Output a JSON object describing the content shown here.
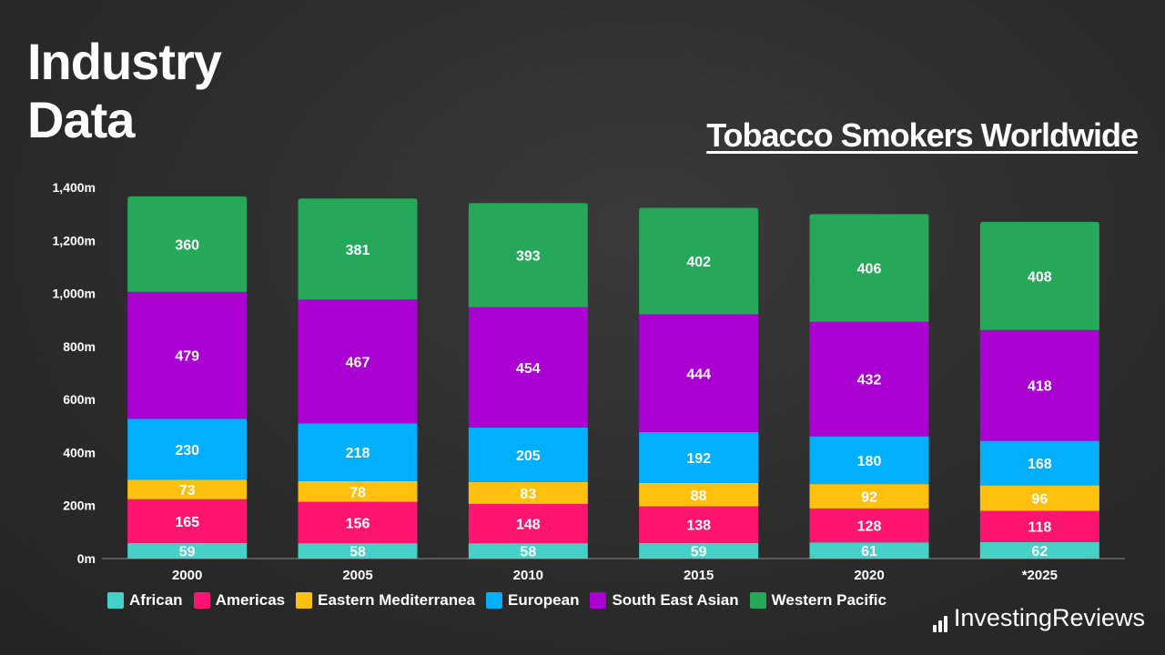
{
  "header": {
    "title_line1": "Industry",
    "title_line2": "Data"
  },
  "chart_data": {
    "type": "bar",
    "stacked": true,
    "title": "Tobacco Smokers Worldwide",
    "categories": [
      "2000",
      "2005",
      "2010",
      "2015",
      "2020",
      "*2025"
    ],
    "y_ticks": [
      "0m",
      "200m",
      "400m",
      "600m",
      "800m",
      "1,000m",
      "1,200m",
      "1,400m"
    ],
    "ylim": [
      0,
      1400
    ],
    "grid": false,
    "legend_position": "bottom-left",
    "series": [
      {
        "name": "African",
        "color": "#45d0c8",
        "values": [
          59,
          58,
          58,
          59,
          61,
          62
        ]
      },
      {
        "name": "Americas",
        "color": "#ff1470",
        "values": [
          165,
          156,
          148,
          138,
          128,
          118
        ]
      },
      {
        "name": "Eastern Mediterranea",
        "color": "#ffc10e",
        "values": [
          73,
          78,
          83,
          88,
          92,
          96
        ]
      },
      {
        "name": "European",
        "color": "#00b0ff",
        "values": [
          230,
          218,
          205,
          192,
          180,
          168
        ]
      },
      {
        "name": "South East Asian",
        "color": "#aa00d2",
        "values": [
          479,
          467,
          454,
          444,
          432,
          418
        ]
      },
      {
        "name": "Western Pacific",
        "color": "#26a85a",
        "values": [
          360,
          381,
          393,
          402,
          406,
          408
        ]
      }
    ]
  },
  "brand": {
    "first": "Investing",
    "second": "Reviews"
  }
}
